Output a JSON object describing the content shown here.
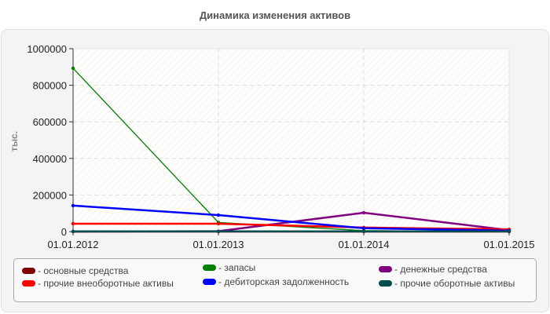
{
  "title": "Динамика изменения активов",
  "chart_data": {
    "type": "line",
    "title": "Динамика изменения активов",
    "xlabel": "",
    "ylabel": "тыс.",
    "x": [
      "01.01.2012",
      "01.01.2013",
      "01.01.2014",
      "01.01.2015"
    ],
    "ylim": [
      0,
      1000000
    ],
    "yticks": [
      "0",
      "200000",
      "400000",
      "600000",
      "800000",
      "1000000"
    ],
    "grid": true,
    "legend_position": "bottom",
    "series": [
      {
        "name": "основные средства",
        "color": "#800000",
        "values": [
          0,
          0,
          0,
          0
        ]
      },
      {
        "name": "запасы",
        "color": "#008000",
        "values": [
          893000,
          50000,
          5000,
          0
        ]
      },
      {
        "name": "денежные средства",
        "color": "#800080",
        "values": [
          0,
          2000,
          103000,
          8000
        ]
      },
      {
        "name": "прочие внеоборотные активы",
        "color": "#ff0000",
        "values": [
          43000,
          43000,
          22000,
          12000
        ]
      },
      {
        "name": "дебиторская задолженность",
        "color": "#0000ff",
        "values": [
          142000,
          90000,
          18000,
          5000
        ]
      },
      {
        "name": "прочие оборотные активы",
        "color": "#004d4d",
        "values": [
          1000,
          1000,
          1000,
          1000
        ]
      }
    ]
  },
  "legend": [
    {
      "label": "- основные средства",
      "color": "#800000"
    },
    {
      "label": "- запасы",
      "color": "#008000"
    },
    {
      "label": "- денежные средства",
      "color": "#800080"
    },
    {
      "label": "- прочие внеоборотные активы",
      "color": "#ff0000"
    },
    {
      "label": "- дебиторская задолженность",
      "color": "#0000ff"
    },
    {
      "label": "- прочие оборотные активы",
      "color": "#004d4d"
    }
  ]
}
